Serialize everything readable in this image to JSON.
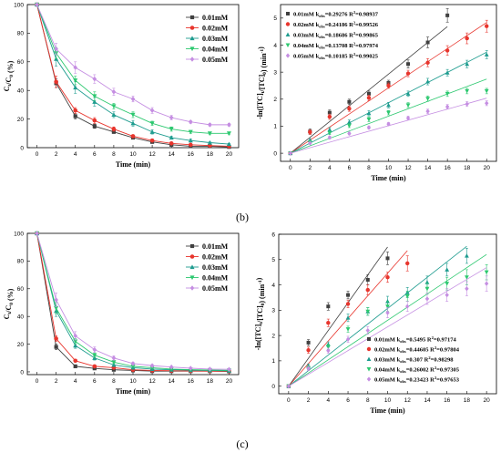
{
  "panel_labels": [
    "(b)",
    "(c)"
  ],
  "colors": [
    "#404040",
    "#e8352d",
    "#1e9c8f",
    "#2cc86f",
    "#c58ee2"
  ],
  "markers": [
    "square",
    "circle",
    "triangle-up",
    "triangle-down",
    "diamond"
  ],
  "chart_data": [
    {
      "id": "b-left",
      "type": "line",
      "xlabel": "Time (min)",
      "ylabel": "Ct/C0 (%)",
      "xlim": [
        -1,
        21
      ],
      "ylim": [
        0,
        100
      ],
      "xticks": [
        0,
        2,
        4,
        6,
        8,
        10,
        12,
        14,
        16,
        18,
        20
      ],
      "yticks": [
        0,
        20,
        40,
        60,
        80,
        100
      ],
      "legend_position": "top-right",
      "x": [
        0,
        2,
        4,
        6,
        8,
        10,
        12,
        14,
        16,
        18,
        20
      ],
      "series": [
        {
          "name": "0.01mM",
          "values": [
            100,
            45,
            22,
            15,
            11,
            7,
            4,
            2,
            1,
            1,
            0.5
          ],
          "errors": [
            0,
            3,
            2,
            1.5,
            1,
            1,
            0.5,
            0.5,
            0.5,
            0.5,
            0.5
          ]
        },
        {
          "name": "0.02mM",
          "values": [
            100,
            46,
            26,
            19,
            13,
            8,
            5,
            3,
            2,
            1.5,
            1
          ],
          "errors": [
            0,
            4,
            2,
            2,
            1.5,
            1,
            1,
            0.5,
            0.5,
            0.5,
            0.5
          ]
        },
        {
          "name": "0.03mM",
          "values": [
            100,
            62,
            42,
            32,
            23,
            17,
            11,
            7,
            5,
            3.5,
            2.5
          ],
          "errors": [
            0,
            5,
            4,
            3,
            2,
            2,
            1.5,
            1,
            1,
            0.5,
            0.5
          ]
        },
        {
          "name": "0.04mM",
          "values": [
            100,
            66,
            47,
            36,
            29,
            23,
            17,
            13,
            11,
            10,
            10
          ],
          "errors": [
            0,
            4,
            3,
            3,
            2,
            2,
            1.5,
            1.5,
            1,
            1,
            1
          ]
        },
        {
          "name": "0.05mM",
          "values": [
            100,
            69,
            56,
            48,
            39,
            34,
            26,
            21,
            18,
            16,
            16
          ],
          "errors": [
            0,
            4,
            4,
            3,
            2.5,
            2,
            2,
            1.5,
            1,
            1,
            1
          ]
        }
      ]
    },
    {
      "id": "b-right",
      "type": "scatter",
      "xlabel": "Time (min)",
      "ylabel": "-ln([TC]t/[TC]0) (min-1)",
      "xlim": [
        -1,
        21
      ],
      "ylim": [
        -0.3,
        5.5
      ],
      "xticks": [
        0,
        2,
        4,
        6,
        8,
        10,
        12,
        14,
        16,
        18,
        20
      ],
      "yticks": [
        0,
        1,
        2,
        3,
        4,
        5
      ],
      "legend_position": "top-left",
      "legend_k_label": "k",
      "legend_k_sub": "obs",
      "legend_r2_label": "R",
      "legend_r2_sup": "2",
      "series": [
        {
          "name": "0.01mM",
          "k": "=0.29276",
          "r2": "=0.98937",
          "slope": 0.29276,
          "x": [
            0,
            2,
            4,
            6,
            8,
            10,
            12,
            14,
            16
          ],
          "values": [
            0,
            0.8,
            1.5,
            1.9,
            2.2,
            2.6,
            3.3,
            4.1,
            5.1
          ],
          "errors": [
            0,
            0.1,
            0.1,
            0.1,
            0.1,
            0.1,
            0.15,
            0.2,
            0.25
          ]
        },
        {
          "name": "0.02mM",
          "k": "=0.24186",
          "r2": "=0.99526",
          "slope": 0.24186,
          "x": [
            0,
            2,
            4,
            6,
            8,
            10,
            12,
            14,
            16,
            18,
            20
          ],
          "values": [
            0,
            0.78,
            1.35,
            1.65,
            2.05,
            2.5,
            2.95,
            3.35,
            3.8,
            4.25,
            4.7
          ],
          "errors": [
            0,
            0.08,
            0.1,
            0.1,
            0.1,
            0.1,
            0.12,
            0.15,
            0.18,
            0.2,
            0.22
          ]
        },
        {
          "name": "0.03mM",
          "k": "=0.18686",
          "r2": "=0.99865",
          "slope": 0.18686,
          "x": [
            0,
            2,
            4,
            6,
            8,
            10,
            12,
            14,
            16,
            18,
            20
          ],
          "values": [
            0,
            0.48,
            0.87,
            1.15,
            1.48,
            1.78,
            2.2,
            2.65,
            2.98,
            3.3,
            3.65
          ],
          "errors": [
            0,
            0.06,
            0.08,
            0.08,
            0.1,
            0.1,
            0.1,
            0.12,
            0.12,
            0.14,
            0.15
          ]
        },
        {
          "name": "0.04mM",
          "k": "=0.13708",
          "r2": "=0.97974",
          "slope": 0.13708,
          "x": [
            0,
            2,
            4,
            6,
            8,
            10,
            12,
            14,
            16,
            18,
            20
          ],
          "values": [
            0,
            0.41,
            0.75,
            1.02,
            1.25,
            1.5,
            1.78,
            2.02,
            2.2,
            2.3,
            2.3
          ],
          "errors": [
            0,
            0.05,
            0.06,
            0.07,
            0.08,
            0.08,
            0.09,
            0.1,
            0.1,
            0.1,
            0.1
          ]
        },
        {
          "name": "0.05mM",
          "k": "=0.10185",
          "r2": "=0.99025",
          "slope": 0.10185,
          "x": [
            0,
            2,
            4,
            6,
            8,
            10,
            12,
            14,
            16,
            18,
            20
          ],
          "values": [
            0,
            0.37,
            0.58,
            0.73,
            0.95,
            1.08,
            1.3,
            1.55,
            1.72,
            1.82,
            1.85
          ],
          "errors": [
            0,
            0.04,
            0.05,
            0.05,
            0.06,
            0.06,
            0.07,
            0.08,
            0.08,
            0.09,
            0.09
          ]
        }
      ]
    },
    {
      "id": "c-left",
      "type": "line",
      "xlabel": "Time (min)",
      "ylabel": "Ct/C0 (%)",
      "xlim": [
        -1,
        21
      ],
      "ylim": [
        -2,
        100
      ],
      "xticks": [
        0,
        2,
        4,
        6,
        8,
        10,
        12,
        14,
        16,
        18,
        20
      ],
      "yticks": [
        0,
        20,
        40,
        60,
        80,
        100
      ],
      "legend_position": "top-right",
      "x": [
        0,
        2,
        4,
        6,
        8,
        10,
        12,
        14,
        16,
        18,
        20
      ],
      "series": [
        {
          "name": "0.01mM",
          "values": [
            100,
            18,
            4,
            2.5,
            1.5,
            1,
            0.5,
            0.5,
            0.5,
            0.5,
            0.3
          ],
          "errors": [
            0,
            2,
            1,
            0.5,
            0.5,
            0.5,
            0.3,
            0.3,
            0.3,
            0.3,
            0.2
          ]
        },
        {
          "name": "0.02mM",
          "values": [
            100,
            24,
            8,
            4,
            3,
            1.5,
            1,
            0.8,
            0.6,
            0.5,
            0.4
          ],
          "errors": [
            0,
            2,
            1,
            0.5,
            0.5,
            0.5,
            0.3,
            0.3,
            0.3,
            0.3,
            0.2
          ]
        },
        {
          "name": "0.03mM",
          "values": [
            100,
            44,
            19,
            10,
            5,
            3,
            2,
            1.5,
            1.2,
            1,
            0.8
          ],
          "errors": [
            0,
            4,
            2,
            1.5,
            1,
            0.5,
            0.5,
            0.5,
            0.3,
            0.3,
            0.3
          ]
        },
        {
          "name": "0.04mM",
          "values": [
            100,
            46,
            22,
            12,
            7,
            4,
            3,
            2,
            1.6,
            1.3,
            1.1
          ],
          "errors": [
            0,
            4,
            2,
            1.5,
            1,
            0.5,
            0.5,
            0.5,
            0.3,
            0.3,
            0.3
          ]
        },
        {
          "name": "0.05mM",
          "values": [
            100,
            52,
            26,
            16,
            10,
            6,
            4.5,
            3.5,
            2.6,
            2,
            1.8
          ],
          "errors": [
            0,
            5,
            3,
            2,
            1.5,
            1,
            0.8,
            0.5,
            0.5,
            0.3,
            0.3
          ]
        }
      ]
    },
    {
      "id": "c-right",
      "type": "scatter",
      "xlabel": "Time (min)",
      "ylabel": "-ln([TC]t/[TC]0) (min-1)",
      "xlim": [
        -1,
        21
      ],
      "ylim": [
        -0.3,
        6
      ],
      "xticks": [
        0,
        2,
        4,
        6,
        8,
        10,
        12,
        14,
        16,
        18,
        20
      ],
      "yticks": [
        0,
        1,
        2,
        3,
        4,
        5,
        6
      ],
      "legend_position": "bottom-right",
      "legend_k_label": "k",
      "legend_k_sub": "obs",
      "legend_r2_label": "R",
      "legend_r2_sup": "2",
      "series": [
        {
          "name": "0.01mM",
          "k": "=0.5495",
          "r2": "=0.97174",
          "slope": 0.5495,
          "x": [
            0,
            2,
            4,
            6,
            8,
            10
          ],
          "values": [
            0,
            1.72,
            3.15,
            3.6,
            4.2,
            5.05
          ],
          "errors": [
            0,
            0.12,
            0.15,
            0.15,
            0.2,
            0.25
          ]
        },
        {
          "name": "0.02mM",
          "k": "=0.44605",
          "r2": "=0.97804",
          "slope": 0.44605,
          "x": [
            0,
            2,
            4,
            6,
            8,
            10,
            12
          ],
          "values": [
            0,
            1.42,
            2.5,
            3.25,
            3.8,
            4.3,
            4.85
          ],
          "errors": [
            0,
            0.12,
            0.15,
            0.15,
            0.2,
            0.2,
            0.3
          ]
        },
        {
          "name": "0.03mM",
          "k": "=0.307",
          "r2": "=0.98298",
          "slope": 0.307,
          "x": [
            0,
            2,
            4,
            6,
            8,
            10,
            12,
            14,
            16,
            18
          ],
          "values": [
            0,
            0.8,
            1.65,
            2.7,
            2.95,
            3.35,
            3.7,
            4.1,
            4.6,
            5.15
          ],
          "errors": [
            0,
            0.08,
            0.1,
            0.15,
            0.15,
            0.2,
            0.2,
            0.25,
            0.25,
            0.3
          ]
        },
        {
          "name": "0.04mM",
          "k": "=0.26002",
          "r2": "=0.97305",
          "slope": 0.26002,
          "x": [
            0,
            2,
            4,
            6,
            8,
            10,
            12,
            14,
            16,
            18,
            20
          ],
          "values": [
            0,
            0.72,
            1.55,
            2.25,
            2.95,
            3.15,
            3.55,
            3.85,
            4.05,
            4.3,
            4.5
          ],
          "errors": [
            0,
            0.08,
            0.1,
            0.12,
            0.15,
            0.2,
            0.2,
            0.22,
            0.25,
            0.3,
            0.3
          ]
        },
        {
          "name": "0.05mM",
          "k": "=0.23423",
          "r2": "=0.97653",
          "slope": 0.23423,
          "x": [
            0,
            2,
            4,
            6,
            8,
            10,
            12,
            14,
            16,
            18,
            20
          ],
          "values": [
            0,
            0.7,
            1.4,
            1.85,
            2.2,
            2.9,
            3.15,
            3.45,
            3.6,
            3.85,
            4.05
          ],
          "errors": [
            0,
            0.08,
            0.1,
            0.12,
            0.15,
            0.2,
            0.2,
            0.22,
            0.25,
            0.28,
            0.3
          ]
        }
      ]
    }
  ]
}
